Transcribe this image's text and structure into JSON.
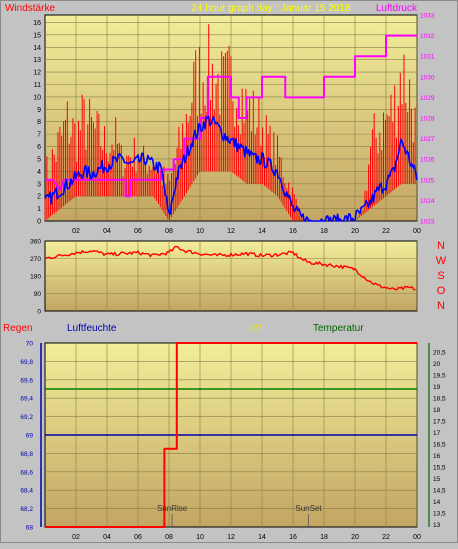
{
  "header": {
    "left_label": "Windstärke",
    "title": "24 hour graph day : Januar 15 2018",
    "right_label": "Luftdruck"
  },
  "middle": {
    "direction_letters": [
      "N",
      "W",
      "S",
      "O",
      "N"
    ]
  },
  "bottom_header": {
    "regen": "Regen",
    "luftfeuchte": "Luftfeuchte",
    "uv": "UV",
    "temperatur": "Temperatur"
  },
  "colors": {
    "plot_bg_top": "#f2ee9a",
    "plot_bg_bottom": "#c2a562",
    "grid": "#8a7e4a",
    "wind_gust": "#ff0000",
    "wind_avg": "#0000ff",
    "pressure": "#ff00ff",
    "direction": "#ff0000",
    "humidity": "#0000b0",
    "uv": "#ff0000",
    "temperature": "#008000",
    "title": "#ffff00"
  },
  "chart_data": [
    {
      "type": "line",
      "name": "wind",
      "x_ticks": [
        "02",
        "04",
        "06",
        "08",
        "10",
        "12",
        "14",
        "16",
        "18",
        "20",
        "22",
        "00"
      ],
      "y_left_ticks": [
        0,
        1,
        2,
        3,
        4,
        5,
        6,
        7,
        8,
        9,
        10,
        11,
        12,
        13,
        14,
        15,
        16
      ],
      "y_left_range": [
        0,
        16.6
      ],
      "y_right_ticks": [
        1023,
        1024,
        1025,
        1026,
        1027,
        1028,
        1029,
        1030,
        1031,
        1032,
        1033
      ],
      "y_right_range": [
        1023,
        1033
      ],
      "x_range": [
        0,
        24
      ],
      "gust_envelope": [
        [
          0,
          5
        ],
        [
          0.5,
          7
        ],
        [
          1,
          9
        ],
        [
          1.5,
          11
        ],
        [
          2,
          9
        ],
        [
          2.5,
          11
        ],
        [
          3,
          10
        ],
        [
          3.5,
          9
        ],
        [
          4,
          8
        ],
        [
          4.5,
          9
        ],
        [
          5,
          6
        ],
        [
          5.5,
          7
        ],
        [
          6,
          7
        ],
        [
          6.5,
          6
        ],
        [
          7,
          6
        ],
        [
          7.5,
          5
        ],
        [
          8,
          4
        ],
        [
          8.5,
          7
        ],
        [
          9,
          10
        ],
        [
          9.5,
          14
        ],
        [
          10,
          15.5
        ],
        [
          10.5,
          16
        ],
        [
          11,
          15
        ],
        [
          11.5,
          14
        ],
        [
          12,
          15
        ],
        [
          12.5,
          14
        ],
        [
          13,
          12
        ],
        [
          13.5,
          11
        ],
        [
          14,
          10
        ],
        [
          14.5,
          8
        ],
        [
          15,
          7
        ],
        [
          15.5,
          5
        ],
        [
          16,
          3
        ],
        [
          16.5,
          1
        ],
        [
          17,
          0
        ],
        [
          18,
          0
        ],
        [
          19,
          0
        ],
        [
          20,
          0
        ],
        [
          20.5,
          1
        ],
        [
          21,
          8
        ],
        [
          21.5,
          10
        ],
        [
          22,
          11
        ],
        [
          22.5,
          12
        ],
        [
          23,
          16.5
        ],
        [
          23.5,
          14
        ],
        [
          24,
          9
        ]
      ],
      "gust_base": [
        [
          0,
          0
        ],
        [
          1,
          1
        ],
        [
          2,
          2
        ],
        [
          3,
          2
        ],
        [
          4,
          2
        ],
        [
          5,
          2
        ],
        [
          6,
          2
        ],
        [
          7,
          2
        ],
        [
          8,
          0
        ],
        [
          9,
          2
        ],
        [
          10,
          4
        ],
        [
          11,
          4
        ],
        [
          12,
          4
        ],
        [
          13,
          3
        ],
        [
          14,
          3
        ],
        [
          15,
          2
        ],
        [
          16,
          0
        ],
        [
          17,
          0
        ],
        [
          18,
          0
        ],
        [
          19,
          0
        ],
        [
          20,
          0
        ],
        [
          21,
          1
        ],
        [
          22,
          2
        ],
        [
          23,
          3
        ],
        [
          24,
          3
        ]
      ],
      "wind_avg": [
        [
          0,
          1.5
        ],
        [
          0.5,
          2
        ],
        [
          1,
          2.5
        ],
        [
          1.5,
          3
        ],
        [
          2,
          3.5
        ],
        [
          2.5,
          4
        ],
        [
          3,
          3.8
        ],
        [
          3.5,
          4.2
        ],
        [
          4,
          4.5
        ],
        [
          4.5,
          4.8
        ],
        [
          5,
          5
        ],
        [
          5.5,
          4.5
        ],
        [
          6,
          4.8
        ],
        [
          6.5,
          5
        ],
        [
          7,
          4.5
        ],
        [
          7.5,
          4.2
        ],
        [
          8,
          0.3
        ],
        [
          8.5,
          3.5
        ],
        [
          9,
          5
        ],
        [
          9.5,
          6.5
        ],
        [
          10,
          7.5
        ],
        [
          10.5,
          8.2
        ],
        [
          11,
          7.8
        ],
        [
          11.5,
          7
        ],
        [
          12,
          6.5
        ],
        [
          12.5,
          6
        ],
        [
          13,
          5.5
        ],
        [
          13.5,
          5
        ],
        [
          14,
          5
        ],
        [
          14.5,
          4.5
        ],
        [
          15,
          4
        ],
        [
          15.5,
          2.5
        ],
        [
          16,
          1
        ],
        [
          16.5,
          0.3
        ],
        [
          17,
          0
        ],
        [
          18,
          0
        ],
        [
          19,
          0
        ],
        [
          20,
          0.3
        ],
        [
          20.5,
          0.8
        ],
        [
          21,
          1.5
        ],
        [
          21.5,
          2.5
        ],
        [
          22,
          3
        ],
        [
          22.5,
          4
        ],
        [
          23,
          6.5
        ],
        [
          23.5,
          5
        ],
        [
          24,
          3.5
        ]
      ],
      "pressure": [
        [
          0,
          1025
        ],
        [
          0.5,
          1025
        ],
        [
          1,
          1024.5
        ],
        [
          1.2,
          1025
        ],
        [
          5.2,
          1025
        ],
        [
          5.2,
          1024.2
        ],
        [
          5.5,
          1024.2
        ],
        [
          5.5,
          1025
        ],
        [
          7.5,
          1025
        ],
        [
          7.5,
          1025.5
        ],
        [
          8.3,
          1025.5
        ],
        [
          8.3,
          1026
        ],
        [
          9,
          1026
        ],
        [
          9,
          1027
        ],
        [
          10,
          1027
        ],
        [
          10,
          1028
        ],
        [
          10.5,
          1028
        ],
        [
          10.5,
          1030
        ],
        [
          12,
          1030
        ],
        [
          12,
          1029
        ],
        [
          12.5,
          1029
        ],
        [
          12.5,
          1028
        ],
        [
          13,
          1028
        ],
        [
          13,
          1029
        ],
        [
          14,
          1029
        ],
        [
          14,
          1030
        ],
        [
          15.5,
          1030
        ],
        [
          15.5,
          1029
        ],
        [
          18,
          1029
        ],
        [
          18,
          1030
        ],
        [
          20,
          1030
        ],
        [
          20,
          1031
        ],
        [
          22,
          1031
        ],
        [
          22,
          1032
        ],
        [
          24,
          1032
        ]
      ]
    },
    {
      "type": "line",
      "name": "wind_direction",
      "y_ticks": [
        0,
        90,
        180,
        270,
        360
      ],
      "y_range": [
        0,
        360
      ],
      "x_range": [
        0,
        24
      ],
      "values": [
        [
          0,
          270
        ],
        [
          1,
          285
        ],
        [
          2,
          300
        ],
        [
          3,
          310
        ],
        [
          4,
          290
        ],
        [
          5,
          295
        ],
        [
          6,
          300
        ],
        [
          7,
          285
        ],
        [
          8,
          300
        ],
        [
          8.5,
          330
        ],
        [
          9,
          310
        ],
        [
          10,
          295
        ],
        [
          11,
          285
        ],
        [
          12,
          290
        ],
        [
          13,
          295
        ],
        [
          14,
          285
        ],
        [
          15,
          290
        ],
        [
          16,
          300
        ],
        [
          16.5,
          270
        ],
        [
          17,
          250
        ],
        [
          18,
          240
        ],
        [
          19,
          230
        ],
        [
          20,
          215
        ],
        [
          20.5,
          180
        ],
        [
          21,
          150
        ],
        [
          21.5,
          130
        ],
        [
          22,
          120
        ],
        [
          22.5,
          110
        ],
        [
          23,
          115
        ],
        [
          23.5,
          120
        ],
        [
          24,
          110
        ]
      ]
    },
    {
      "type": "line",
      "name": "rain_humidity_uv_temperature",
      "y_left_ticks": [
        "68",
        "68,2",
        "68,4",
        "68,6",
        "68,8",
        "69",
        "69,2",
        "69,4",
        "69,6",
        "69,8",
        "70"
      ],
      "y_left_range": [
        68,
        70
      ],
      "y_right_ticks": [
        "13",
        "13,5",
        "14",
        "14,5",
        "15",
        "15,5",
        "16",
        "16,5",
        "17",
        "17,5",
        "18",
        "18,5",
        "19",
        "19,5",
        "20",
        "20,5"
      ],
      "y_right_range": [
        12.9,
        20.9
      ],
      "x_range": [
        0,
        24
      ],
      "humidity": [
        [
          0,
          69
        ],
        [
          24,
          69
        ]
      ],
      "temperature": [
        [
          0,
          18.9
        ],
        [
          24,
          18.9
        ]
      ],
      "uv": [
        [
          0,
          68
        ],
        [
          7.7,
          68
        ],
        [
          7.7,
          68.85
        ],
        [
          8.5,
          68.85
        ],
        [
          8.5,
          70
        ],
        [
          24,
          70
        ]
      ],
      "annotations": [
        {
          "text": "SunRise",
          "x": 8.2
        },
        {
          "text": "SunSet",
          "x": 17
        }
      ]
    }
  ]
}
